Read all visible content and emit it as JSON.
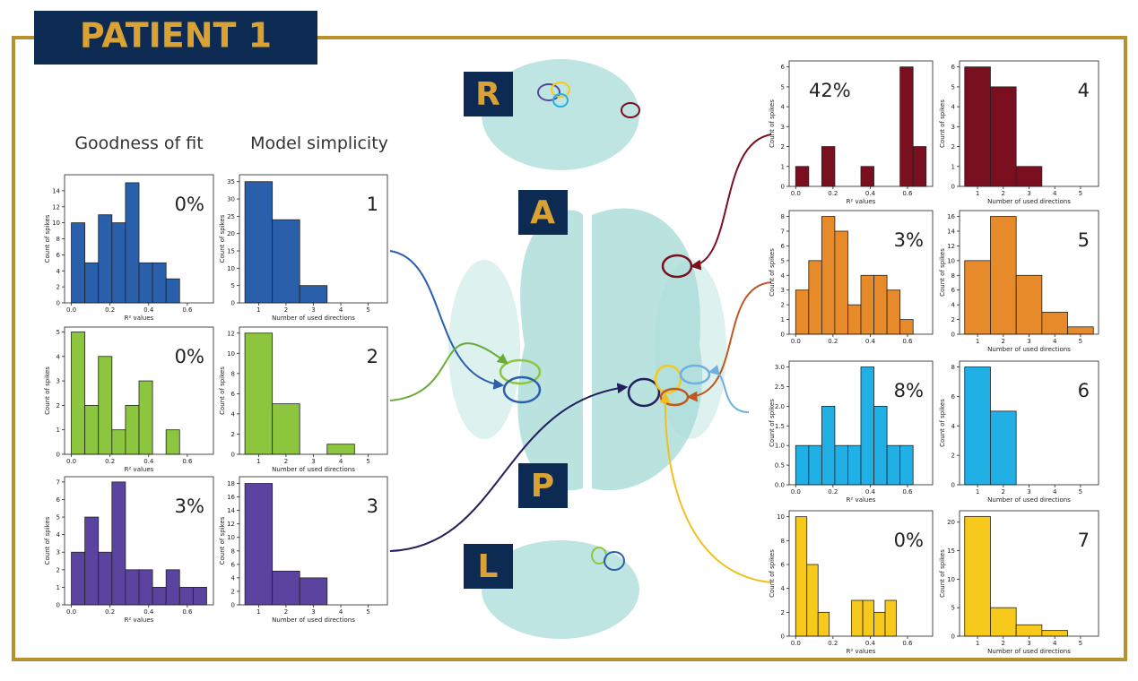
{
  "header": {
    "title": "PATIENT 1"
  },
  "column_titles": [
    "Goodness of fit",
    "Model simplicity"
  ],
  "brain_views": [
    "R",
    "A",
    "P",
    "L"
  ],
  "chart_data": [
    {
      "type": "histogram",
      "color": "#2a5fab",
      "bins": [
        0,
        0.07,
        0.14,
        0.21,
        0.28,
        0.35,
        0.42,
        0.49,
        0.56
      ],
      "values": [
        10,
        5,
        11,
        10,
        15,
        5,
        5,
        3
      ],
      "xlim": [
        -0.035,
        0.735
      ],
      "ylim": [
        0,
        16
      ],
      "xticks": [
        {
          "value": 0,
          "label": "0.0"
        },
        0.2,
        0.4,
        0.6
      ],
      "yticks": [
        0,
        2,
        4,
        6,
        8,
        10,
        12,
        14
      ],
      "xlabel": "R² values",
      "ylabel": "Count of spikes",
      "annotation": "0%"
    },
    {
      "type": "histogram",
      "color": "#2a5fab",
      "bins": [
        0.5,
        1.5,
        2.5,
        3.5
      ],
      "values": [
        35,
        24,
        5
      ],
      "xlim": [
        0.3,
        5.7
      ],
      "ylim": [
        0,
        37
      ],
      "xticks": [
        1,
        2,
        3,
        4,
        5
      ],
      "yticks": [
        0,
        5,
        10,
        15,
        20,
        25,
        30,
        35
      ],
      "xlabel": "Number of used directions",
      "ylabel": "Count of spikes",
      "annotation": "1"
    },
    {
      "type": "histogram",
      "color": "#8cc63f",
      "bins": [
        0,
        0.07,
        0.14,
        0.21,
        0.28,
        0.35,
        0.42,
        0.49,
        0.56
      ],
      "values": [
        5,
        2,
        4,
        1,
        2,
        3,
        0,
        1
      ],
      "xlim": [
        -0.035,
        0.735
      ],
      "ylim": [
        0,
        5.2
      ],
      "xticks": [
        {
          "value": 0,
          "label": "0.0"
        },
        0.2,
        0.4,
        0.6
      ],
      "yticks": [
        0,
        1,
        2,
        3,
        4,
        5
      ],
      "xlabel": "R² values",
      "ylabel": "Count of spikes",
      "annotation": "0%"
    },
    {
      "type": "histogram",
      "color": "#8cc63f",
      "bins": [
        0.5,
        1.5,
        2.5,
        3.5,
        4.5
      ],
      "values": [
        12,
        5,
        0,
        1
      ],
      "xlim": [
        0.3,
        5.7
      ],
      "ylim": [
        0,
        12.6
      ],
      "xticks": [
        1,
        2,
        3,
        4,
        5
      ],
      "yticks": [
        0,
        2,
        4,
        6,
        8,
        10,
        12
      ],
      "xlabel": "Number of used directions",
      "ylabel": "Count of spikes",
      "annotation": "2"
    },
    {
      "type": "histogram",
      "color": "#5a44a0",
      "bins": [
        0,
        0.07,
        0.14,
        0.21,
        0.28,
        0.35,
        0.42,
        0.49,
        0.56,
        0.63,
        0.7
      ],
      "values": [
        3,
        5,
        3,
        7,
        2,
        2,
        1,
        2,
        1,
        1
      ],
      "xlim": [
        -0.035,
        0.735
      ],
      "ylim": [
        0,
        7.3
      ],
      "xticks": [
        {
          "value": 0,
          "label": "0.0"
        },
        0.2,
        0.4,
        0.6
      ],
      "yticks": [
        0,
        1,
        2,
        3,
        4,
        5,
        6,
        7
      ],
      "xlabel": "R² values",
      "ylabel": "Count of spikes",
      "annotation": "3%"
    },
    {
      "type": "histogram",
      "color": "#5a44a0",
      "bins": [
        0.5,
        1.5,
        2.5,
        3.5
      ],
      "values": [
        18,
        5,
        4
      ],
      "xlim": [
        0.3,
        5.7
      ],
      "ylim": [
        0,
        19
      ],
      "xticks": [
        1,
        2,
        3,
        4,
        5
      ],
      "yticks": [
        0,
        2,
        4,
        6,
        8,
        10,
        12,
        14,
        16,
        18
      ],
      "xlabel": "Number of used directions",
      "ylabel": "Count of spikes",
      "annotation": "3"
    },
    {
      "type": "histogram",
      "color": "#7a0f20",
      "bins": [
        0,
        0.07,
        0.14,
        0.21,
        0.28,
        0.35,
        0.42,
        0.49,
        0.56,
        0.63,
        0.7
      ],
      "values": [
        1,
        0,
        2,
        0,
        0,
        1,
        0,
        0,
        6,
        2
      ],
      "xlim": [
        -0.035,
        0.735
      ],
      "ylim": [
        0,
        6.3
      ],
      "xticks": [
        {
          "value": 0,
          "label": "0.0"
        },
        0.2,
        0.4,
        0.6
      ],
      "yticks": [
        0,
        1,
        2,
        3,
        4,
        5,
        6
      ],
      "xlabel": "R² values",
      "ylabel": "Count of spikes",
      "annotation": "42%",
      "annotation_color": "#e8302e"
    },
    {
      "type": "histogram",
      "color": "#7a0f20",
      "bins": [
        0.5,
        1.5,
        2.5,
        3.5
      ],
      "values": [
        6,
        5,
        1
      ],
      "xlim": [
        0.3,
        5.7
      ],
      "ylim": [
        0,
        6.3
      ],
      "xticks": [
        1,
        2,
        3,
        4,
        5
      ],
      "yticks": [
        0,
        1,
        2,
        3,
        4,
        5,
        6
      ],
      "xlabel": "Number of used directions",
      "ylabel": "Count of spikes",
      "annotation": "4"
    },
    {
      "type": "histogram",
      "color": "#e68a2a",
      "bins": [
        0,
        0.07,
        0.14,
        0.21,
        0.28,
        0.35,
        0.42,
        0.49,
        0.56,
        0.63
      ],
      "values": [
        3,
        5,
        8,
        7,
        2,
        4,
        4,
        3,
        1
      ],
      "xlim": [
        -0.035,
        0.735
      ],
      "ylim": [
        0,
        8.4
      ],
      "xticks": [
        {
          "value": 0,
          "label": "0.0"
        },
        0.2,
        0.4,
        0.6
      ],
      "yticks": [
        0,
        1,
        2,
        3,
        4,
        5,
        6,
        7,
        8
      ],
      "ylabel": "Count of spikes",
      "annotation": "3%"
    },
    {
      "type": "histogram",
      "color": "#e68a2a",
      "bins": [
        0.5,
        1.5,
        2.5,
        3.5,
        4.5,
        5.5
      ],
      "values": [
        10,
        16,
        8,
        3,
        1
      ],
      "xlim": [
        0.3,
        5.7
      ],
      "ylim": [
        0,
        16.8
      ],
      "xticks": [
        1,
        2,
        3,
        4,
        5
      ],
      "yticks": [
        0,
        2,
        4,
        6,
        8,
        10,
        12,
        14,
        16
      ],
      "xlabel": "Number of used directions",
      "ylabel": "Count of spikes",
      "annotation": "5"
    },
    {
      "type": "histogram",
      "color": "#20b0e6",
      "bins": [
        0,
        0.07,
        0.14,
        0.21,
        0.28,
        0.35,
        0.42,
        0.49,
        0.56,
        0.63
      ],
      "values": [
        1,
        1,
        2,
        1,
        1,
        3,
        2,
        1,
        1
      ],
      "xlim": [
        -0.035,
        0.735
      ],
      "ylim": [
        0,
        3.15
      ],
      "xticks": [
        {
          "value": 0,
          "label": "0.0"
        },
        0.2,
        0.4,
        0.6
      ],
      "yticks": [
        {
          "value": 0,
          "label": "0.0"
        },
        0.5,
        {
          "value": 1,
          "label": "1.0"
        },
        1.5,
        {
          "value": 2,
          "label": "2.0"
        },
        2.5,
        {
          "value": 3,
          "label": "3.0"
        }
      ],
      "xlabel": "R² values",
      "ylabel": "Count of spikes",
      "annotation": "8%"
    },
    {
      "type": "histogram",
      "color": "#20b0e6",
      "bins": [
        0.5,
        1.5,
        2.5
      ],
      "values": [
        8,
        5
      ],
      "xlim": [
        0.3,
        5.7
      ],
      "ylim": [
        0,
        8.4
      ],
      "xticks": [
        1,
        2,
        3,
        4,
        5
      ],
      "yticks": [
        0,
        2,
        4,
        6,
        8
      ],
      "xlabel": "Number of used directions",
      "ylabel": "Count of spikes",
      "annotation": "6"
    },
    {
      "type": "histogram",
      "color": "#f7c91a",
      "bins": [
        0,
        0.06,
        0.12,
        0.18,
        0.24,
        0.3,
        0.36,
        0.42,
        0.48,
        0.54
      ],
      "values": [
        10,
        6,
        2,
        0,
        0,
        3,
        3,
        2,
        3
      ],
      "xlim": [
        -0.035,
        0.735
      ],
      "ylim": [
        0,
        10.5
      ],
      "xticks": [
        {
          "value": 0,
          "label": "0.0"
        },
        0.2,
        0.4,
        0.6
      ],
      "yticks": [
        0,
        2,
        4,
        6,
        8,
        10
      ],
      "xlabel": "R² values",
      "ylabel": "Count of spikes",
      "annotation": "0%"
    },
    {
      "type": "histogram",
      "color": "#f7c91a",
      "bins": [
        0.5,
        1.5,
        2.5,
        3.5,
        4.5
      ],
      "values": [
        21,
        5,
        2,
        1
      ],
      "xlim": [
        0.3,
        5.7
      ],
      "ylim": [
        0,
        22
      ],
      "xticks": [
        1,
        2,
        3,
        4,
        5
      ],
      "yticks": [
        0,
        5,
        10,
        15,
        20
      ],
      "xlabel": "Number of used directions",
      "ylabel": "Count of spikes",
      "annotation": "7"
    }
  ]
}
